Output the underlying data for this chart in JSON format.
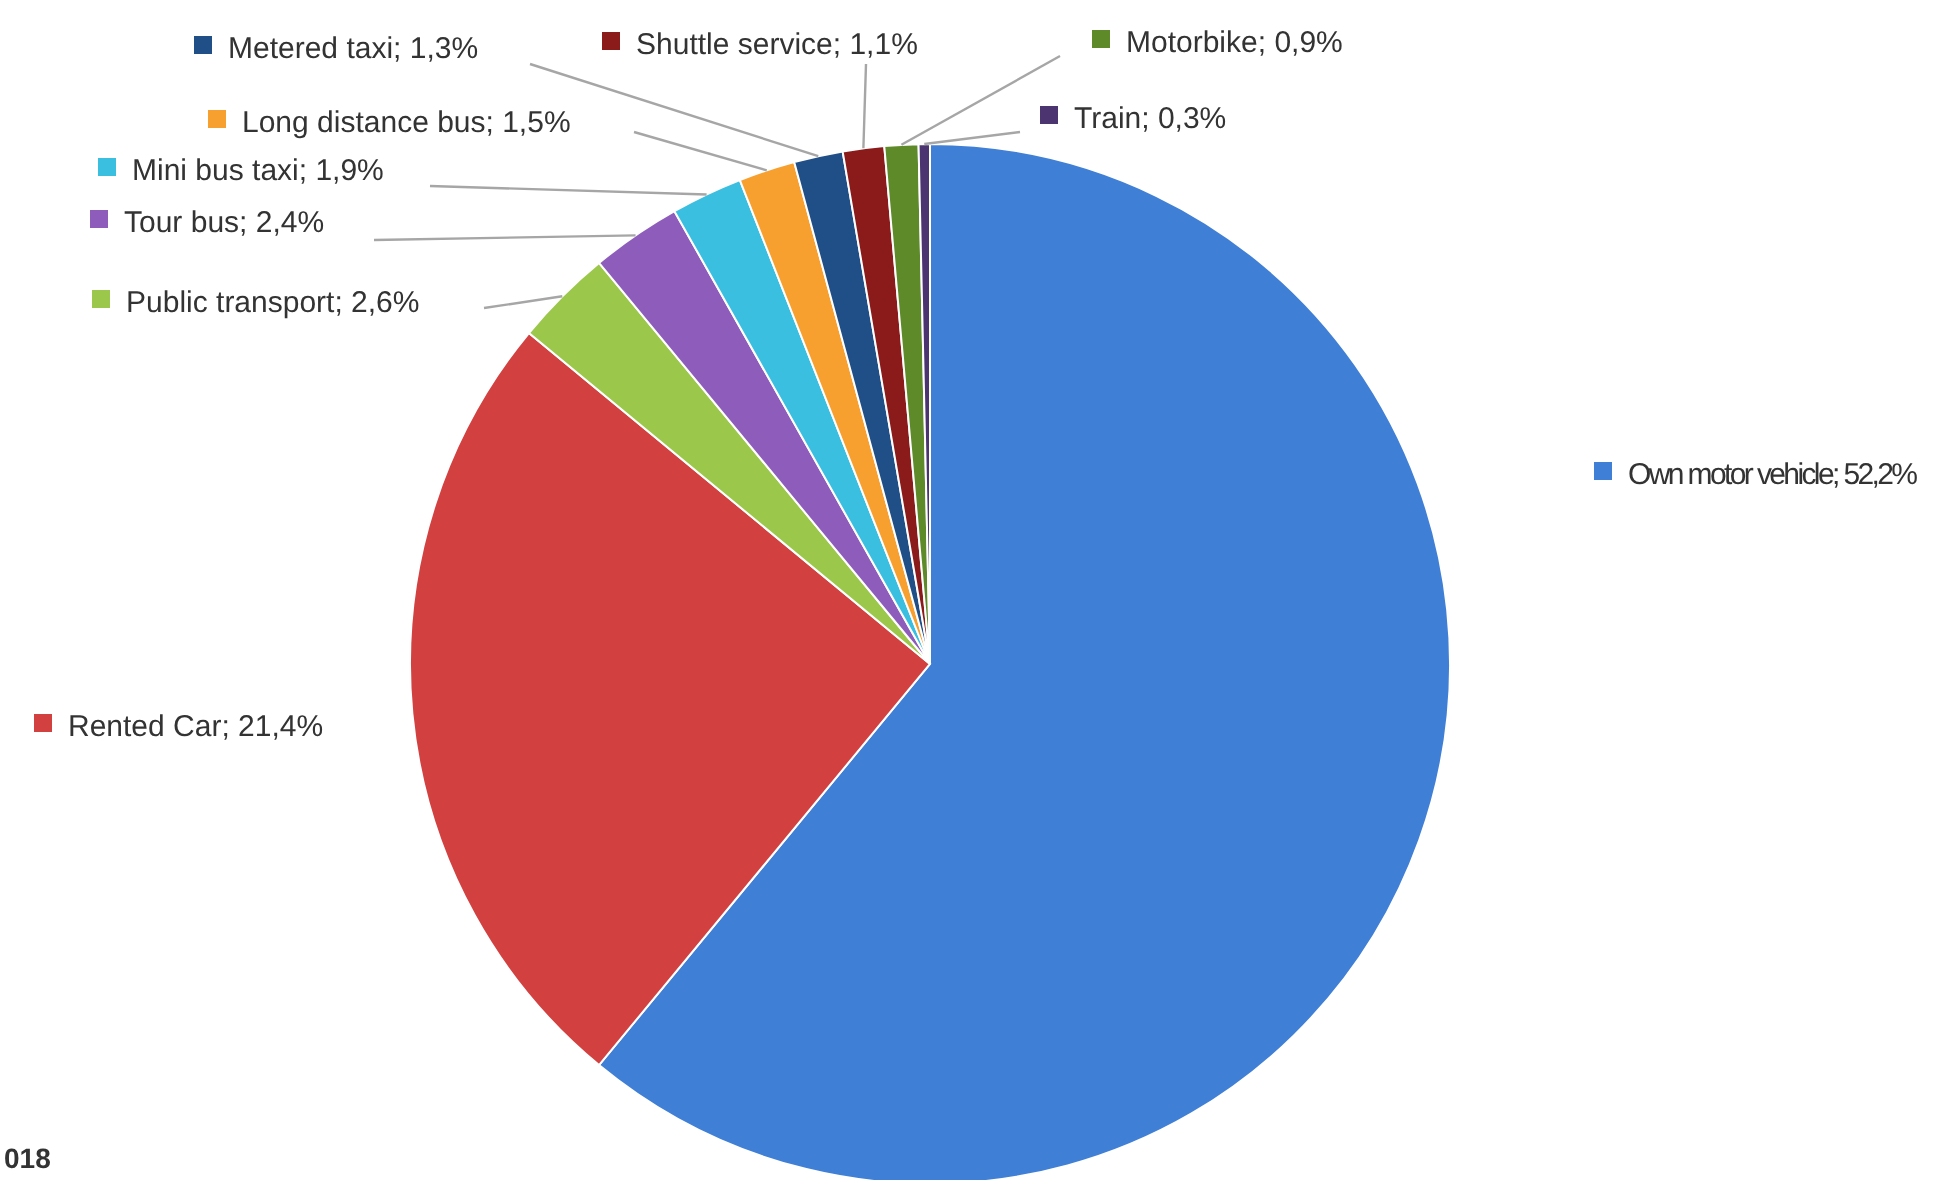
{
  "chart_data": {
    "type": "pie",
    "categories": [
      "Own motor vehicle",
      "Rented Car",
      "Public transport",
      "Tour bus",
      "Mini bus taxi",
      "Long distance bus",
      "Metered taxi",
      "Shuttle service",
      "Motorbike",
      "Train"
    ],
    "values": [
      52.2,
      21.4,
      2.6,
      2.4,
      1.9,
      1.5,
      1.3,
      1.1,
      0.9,
      0.3
    ],
    "value_labels": [
      "52,2%",
      "21,4%",
      "2,6%",
      "2,4%",
      "1,9%",
      "1,5%",
      "1,3%",
      "1,1%",
      "0,9%",
      "0,3%"
    ],
    "colors": [
      "#3f7fd6",
      "#d24040",
      "#9bc84a",
      "#8e5dbc",
      "#3bbfe0",
      "#f7a030",
      "#1f4f86",
      "#8b1a1a",
      "#5e8a2a",
      "#4b3470"
    ],
    "annotations": [
      "018"
    ],
    "legend": "left"
  }
}
